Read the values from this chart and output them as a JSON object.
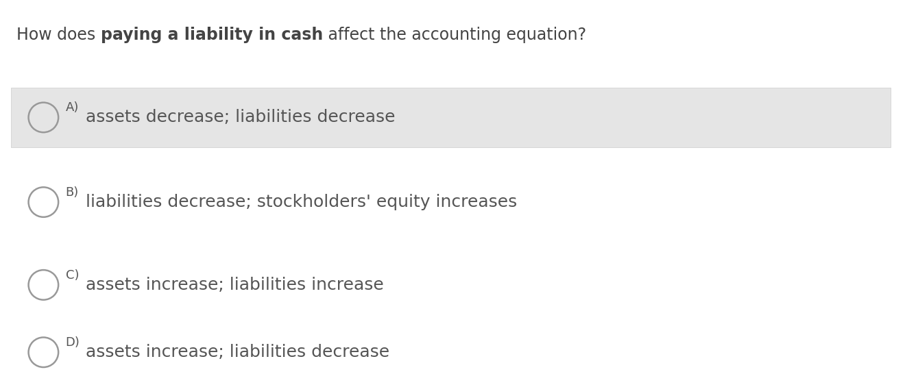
{
  "title_parts": [
    {
      "text": "How does ",
      "bold": false
    },
    {
      "text": "paying a liability in cash",
      "bold": true
    },
    {
      "text": " affect the accounting equation?",
      "bold": false
    }
  ],
  "options": [
    {
      "label": "A)",
      "text": "assets decrease; liabilities decrease",
      "highlighted": true
    },
    {
      "label": "B)",
      "text": "liabilities decrease; stockholders' equity increases",
      "highlighted": false
    },
    {
      "label": "C)",
      "text": "assets increase; liabilities increase",
      "highlighted": false
    },
    {
      "label": "D)",
      "text": "assets increase; liabilities decrease",
      "highlighted": false
    }
  ],
  "background_color": "#ffffff",
  "highlight_color": "#e5e5e5",
  "text_color": "#555555",
  "title_color": "#444444",
  "circle_edge_color": "#999999",
  "title_fontsize": 17,
  "option_label_fontsize": 13,
  "option_text_fontsize": 18,
  "fig_width": 13.2,
  "fig_height": 5.62
}
